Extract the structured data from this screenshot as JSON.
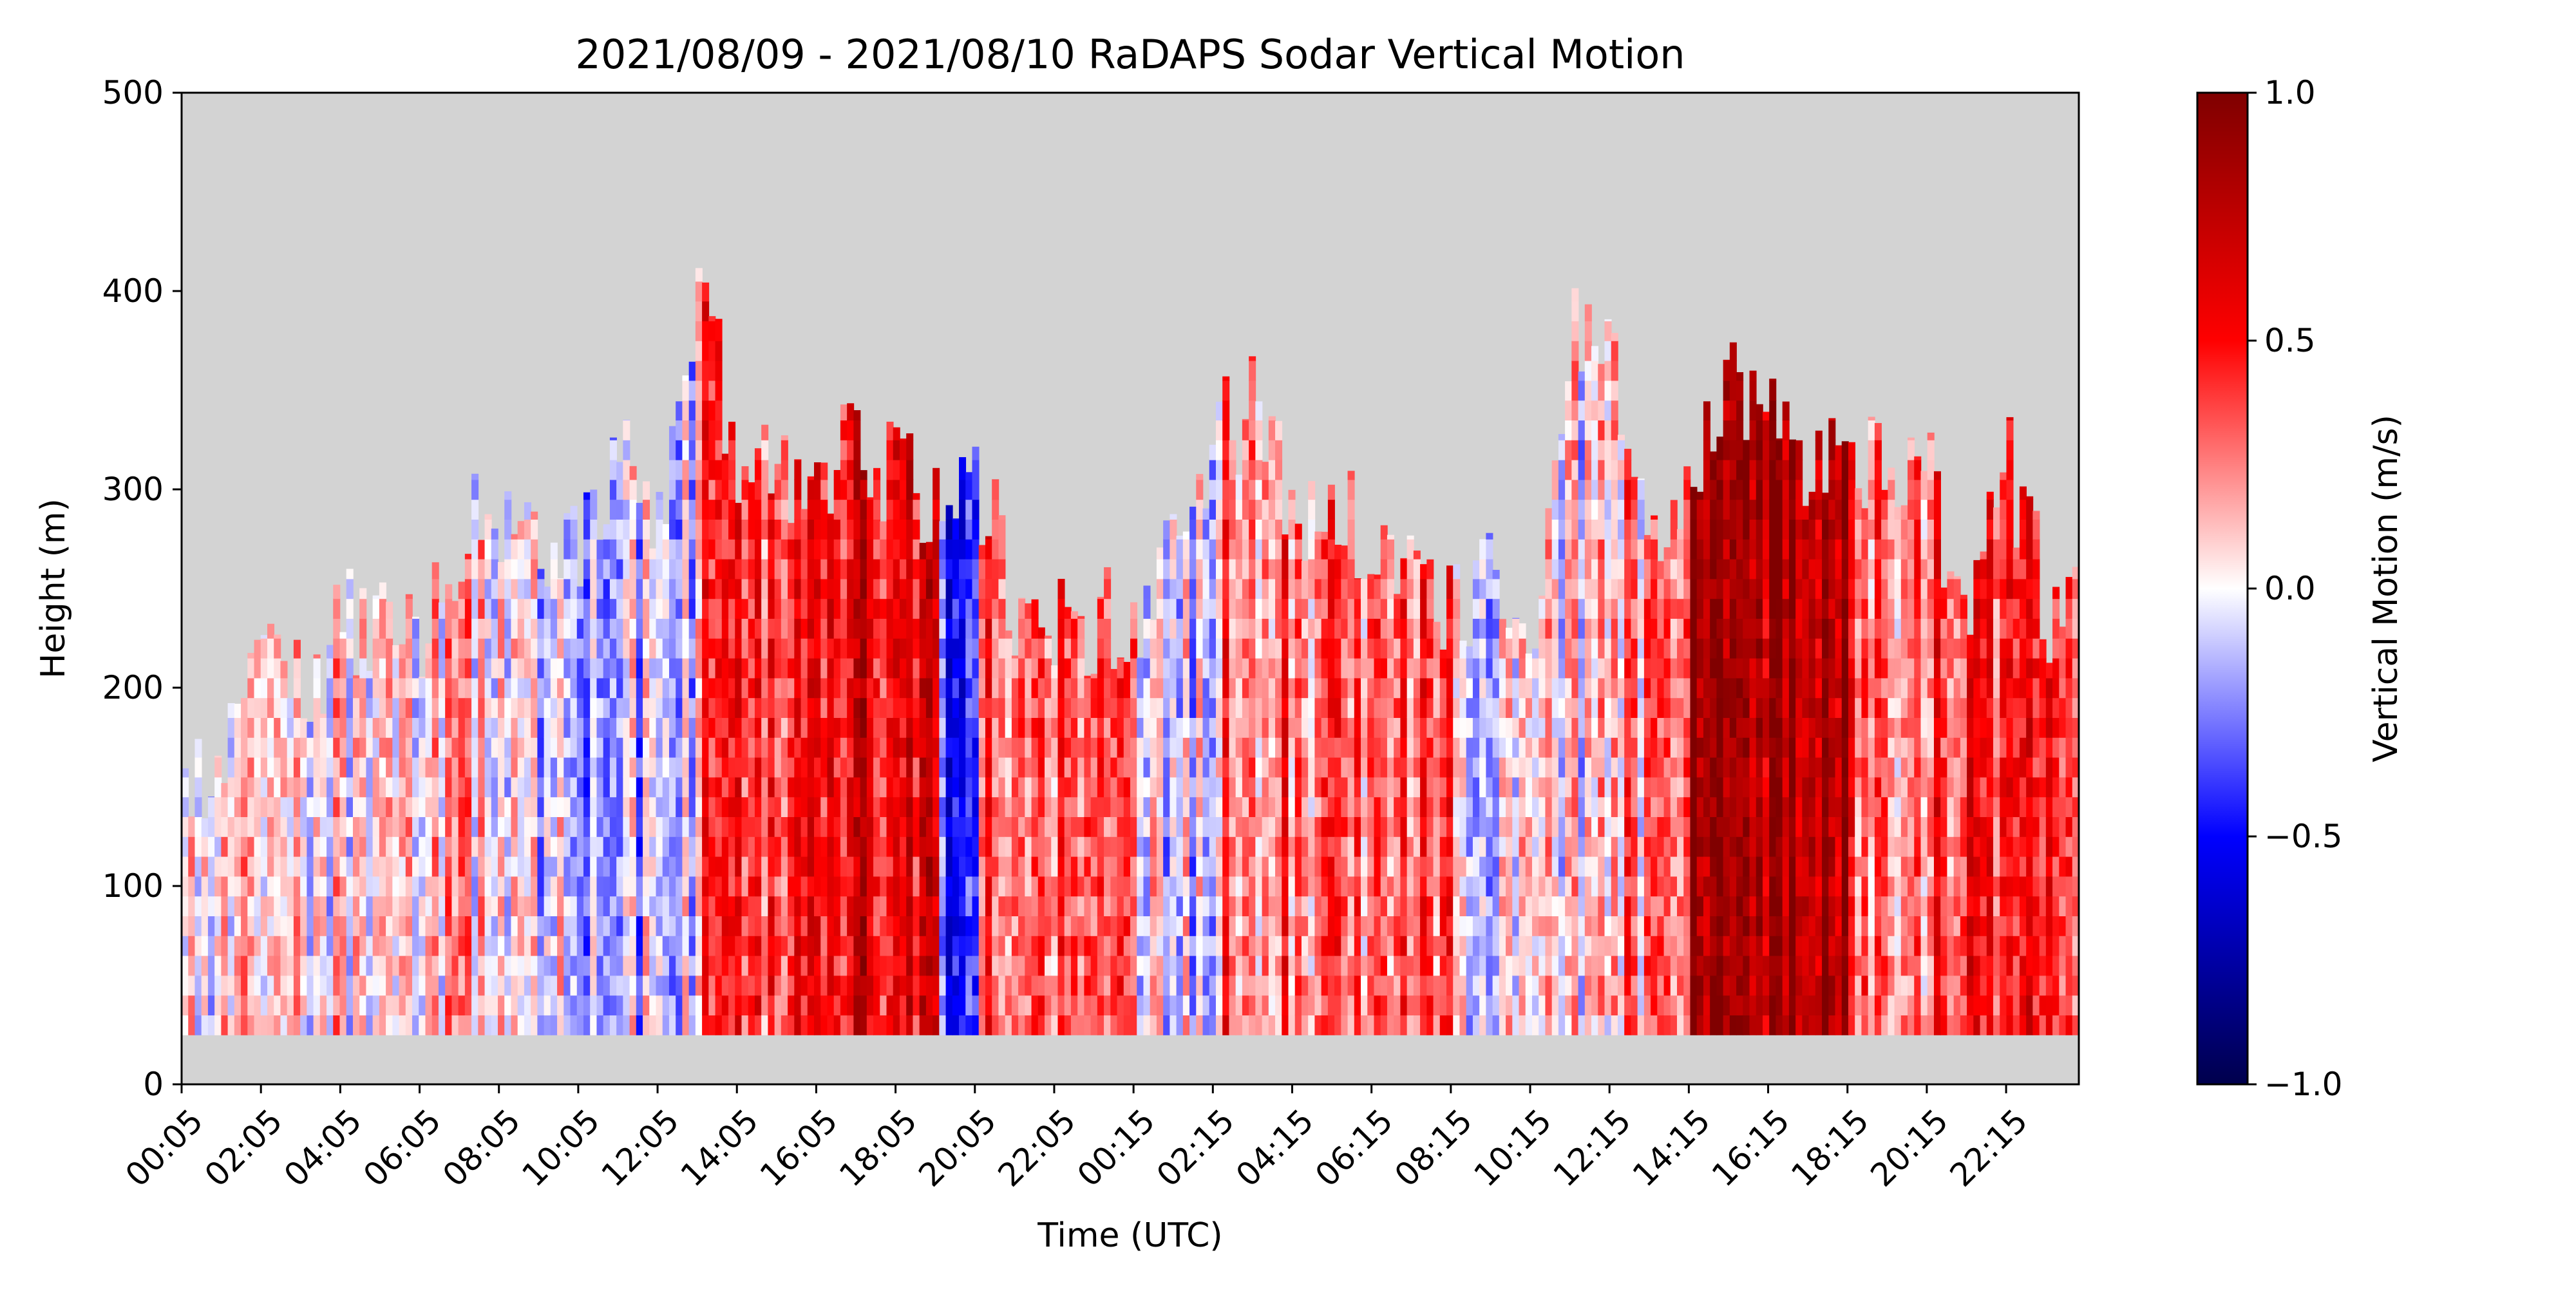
{
  "chart_data": {
    "type": "heatmap",
    "title": "2021/08/09 - 2021/08/10 RaDAPS Sodar Vertical Motion",
    "xlabel": "Time (UTC)",
    "ylabel": "Height (m)",
    "colorbar_label": "Vertical Motion (m/s)",
    "colormap": "seismic",
    "missing_color": "#d3d3d3",
    "ylim": [
      0,
      500
    ],
    "yticks": [
      0,
      100,
      200,
      300,
      400,
      500
    ],
    "y_tick_labels": [
      "0",
      "100",
      "200",
      "300",
      "400",
      "500"
    ],
    "x_tick_labels": [
      "00:05",
      "02:05",
      "04:05",
      "06:05",
      "08:05",
      "10:05",
      "12:05",
      "14:05",
      "16:05",
      "18:05",
      "20:05",
      "22:05",
      "00:15",
      "02:15",
      "04:15",
      "06:15",
      "08:15",
      "10:15",
      "12:15",
      "14:15",
      "16:15",
      "18:15",
      "20:15",
      "22:15"
    ],
    "x_start": "2021-08-09 00:05",
    "x_end": "2021-08-10 23:55",
    "x_tick_interval_hours": 2,
    "clim": [
      -1.0,
      1.0
    ],
    "colorbar_ticks": [
      -1.0,
      -0.5,
      0.0,
      0.5,
      1.0
    ],
    "colorbar_tick_labels": [
      "−1.0",
      "−0.5",
      "0.0",
      "0.5",
      "1.0"
    ],
    "height_bin_min": 25,
    "data_top_heights_m": [
      [
        0,
        150
      ],
      [
        1,
        165
      ],
      [
        2,
        220
      ],
      [
        3,
        190
      ],
      [
        4,
        235
      ],
      [
        5,
        225
      ],
      [
        6,
        235
      ],
      [
        7,
        280
      ],
      [
        8,
        285
      ],
      [
        9,
        280
      ],
      [
        10,
        280
      ],
      [
        11,
        310
      ],
      [
        12,
        295
      ],
      [
        13,
        395
      ],
      [
        14,
        310
      ],
      [
        15,
        300
      ],
      [
        16,
        295
      ],
      [
        17,
        325
      ],
      [
        18,
        300
      ],
      [
        19,
        300
      ],
      [
        20,
        305
      ],
      [
        21,
        240
      ],
      [
        22,
        230
      ],
      [
        23,
        235
      ],
      [
        24,
        230
      ],
      [
        25,
        290
      ],
      [
        26,
        330
      ],
      [
        27,
        340
      ],
      [
        28,
        290
      ],
      [
        29,
        285
      ],
      [
        30,
        280
      ],
      [
        31,
        270
      ],
      [
        32,
        235
      ],
      [
        33,
        250
      ],
      [
        34,
        240
      ],
      [
        35,
        380
      ],
      [
        36,
        370
      ],
      [
        37,
        290
      ],
      [
        38,
        300
      ],
      [
        39,
        360
      ],
      [
        40,
        330
      ],
      [
        41,
        310
      ],
      [
        42,
        325
      ],
      [
        43,
        300
      ],
      [
        44,
        300
      ],
      [
        45,
        240
      ],
      [
        46,
        310
      ],
      [
        47,
        240
      ]
    ],
    "segments": [
      {
        "from": 0,
        "to": 6,
        "mean_motion": 0.05
      },
      {
        "from": 6,
        "to": 8,
        "mean_motion": 0.1
      },
      {
        "from": 8,
        "to": 13,
        "mean_motion": -0.1
      },
      {
        "from": 13,
        "to": 16,
        "mean_motion": 0.4
      },
      {
        "from": 16,
        "to": 19,
        "mean_motion": 0.6
      },
      {
        "from": 19,
        "to": 20,
        "mean_motion": -0.4
      },
      {
        "from": 20,
        "to": 24,
        "mean_motion": 0.35
      },
      {
        "from": 24,
        "to": 26,
        "mean_motion": -0.05
      },
      {
        "from": 26,
        "to": 32,
        "mean_motion": 0.3
      },
      {
        "from": 32,
        "to": 36,
        "mean_motion": 0.0
      },
      {
        "from": 36,
        "to": 38,
        "mean_motion": 0.2
      },
      {
        "from": 38,
        "to": 42,
        "mean_motion": 0.85
      },
      {
        "from": 42,
        "to": 44,
        "mean_motion": 0.3
      },
      {
        "from": 44,
        "to": 48,
        "mean_motion": 0.4
      }
    ]
  }
}
